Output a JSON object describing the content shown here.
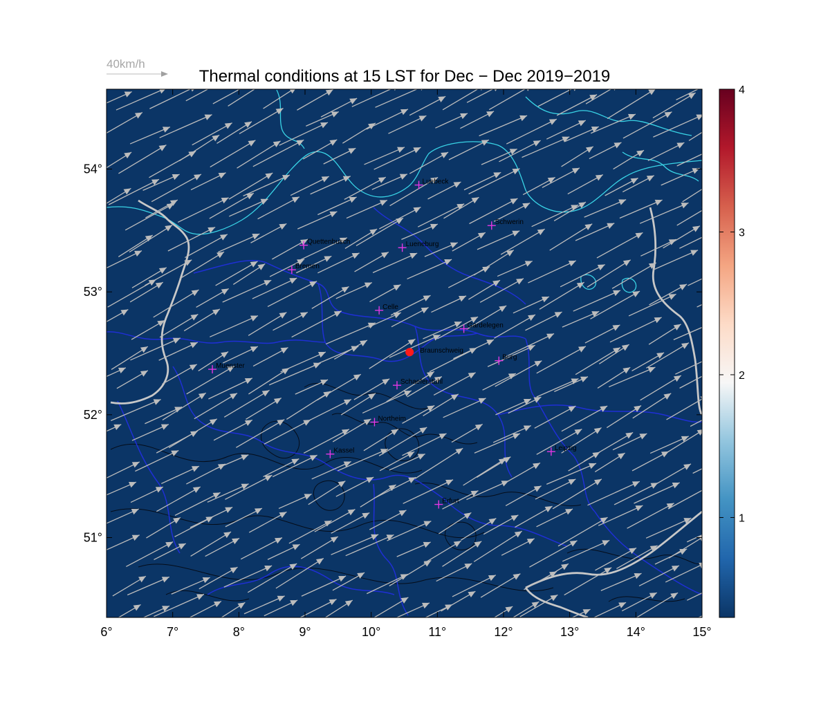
{
  "title": "Thermal conditions at 15 LST for Dec − Dec  2019−2019",
  "wind_scale_label": "40km/h",
  "colors": {
    "ocean_fill": "#0b3566",
    "state_border": "#1f2fd6",
    "coastline": "#39d4e6",
    "country_border": "#c8c8c8",
    "terrain_contour": "#050c18",
    "wind_vector": "#bdbdbd",
    "city_marker": "#e436e4",
    "site_marker": "#ff1a1a"
  },
  "map": {
    "lon_range": [
      6,
      15
    ],
    "lat_range": [
      50.35,
      54.65
    ],
    "lon_ticks": [
      {
        "value": 6,
        "label": "6°"
      },
      {
        "value": 7,
        "label": "7°"
      },
      {
        "value": 8,
        "label": "8°"
      },
      {
        "value": 9,
        "label": "9°"
      },
      {
        "value": 10,
        "label": "10°"
      },
      {
        "value": 11,
        "label": "11°"
      },
      {
        "value": 12,
        "label": "12°"
      },
      {
        "value": 13,
        "label": "13°"
      },
      {
        "value": 14,
        "label": "14°"
      },
      {
        "value": 15,
        "label": "15°"
      }
    ],
    "lat_ticks": [
      {
        "value": 51,
        "label": "51°"
      },
      {
        "value": 52,
        "label": "52°"
      },
      {
        "value": 53,
        "label": "53°"
      },
      {
        "value": 54,
        "label": "54°"
      }
    ],
    "site": {
      "name": "Braunschweig",
      "lon": 10.58,
      "lat": 52.51
    },
    "cities": [
      {
        "name": "Luebeck",
        "lon": 10.72,
        "lat": 53.87
      },
      {
        "name": "Schwerin",
        "lon": 11.82,
        "lat": 53.54
      },
      {
        "name": "Quettenbusch",
        "lon": 8.98,
        "lat": 53.38
      },
      {
        "name": "Lueneburg",
        "lon": 10.47,
        "lat": 53.36
      },
      {
        "name": "Bremen",
        "lon": 8.8,
        "lat": 53.18
      },
      {
        "name": "Celle",
        "lon": 10.12,
        "lat": 52.85
      },
      {
        "name": "Gardelegen",
        "lon": 11.4,
        "lat": 52.7
      },
      {
        "name": "Burg",
        "lon": 11.93,
        "lat": 52.44
      },
      {
        "name": "Muenster",
        "lon": 7.6,
        "lat": 52.37
      },
      {
        "name": "Schaeferstuhl",
        "lon": 10.39,
        "lat": 52.24
      },
      {
        "name": "Northeim",
        "lon": 10.05,
        "lat": 51.94
      },
      {
        "name": "Kassel",
        "lon": 9.38,
        "lat": 51.68
      },
      {
        "name": "Leipzig",
        "lon": 12.72,
        "lat": 51.7
      },
      {
        "name": "Erfurt",
        "lon": 11.02,
        "lat": 51.27
      }
    ],
    "wind": {
      "direction_to_deg": 28,
      "speed_kmh": 32
    }
  },
  "colorbar": {
    "range": [
      0.3,
      4.0
    ],
    "ticks": [
      {
        "value": 1,
        "label": "1"
      },
      {
        "value": 2,
        "label": "2"
      },
      {
        "value": 3,
        "label": "3"
      },
      {
        "value": 4,
        "label": "4"
      }
    ],
    "stops": [
      "#0b3566",
      "#2166ac",
      "#4393c3",
      "#92c5de",
      "#f7f7f7",
      "#fddbc7",
      "#f4a582",
      "#d6604d",
      "#b2182b",
      "#67001f"
    ]
  }
}
